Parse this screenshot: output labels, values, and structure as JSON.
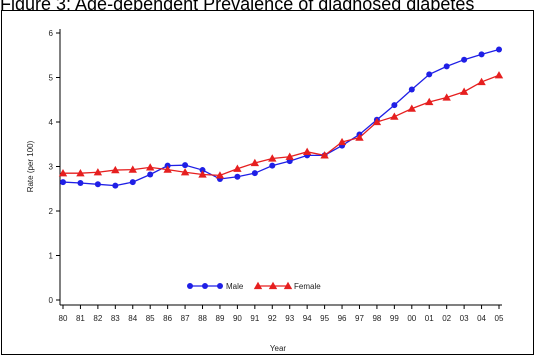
{
  "figure": {
    "title": "Figure 3: Age-dependent Prevalence of diagnosed diabetes"
  },
  "chart_data": {
    "type": "line",
    "xlabel": "Year",
    "ylabel": "Rate (per 100)",
    "categories": [
      "80",
      "81",
      "82",
      "83",
      "84",
      "85",
      "86",
      "87",
      "88",
      "89",
      "90",
      "91",
      "92",
      "93",
      "94",
      "95",
      "96",
      "97",
      "98",
      "99",
      "00",
      "01",
      "02",
      "03",
      "04",
      "05"
    ],
    "ylim": [
      0,
      6
    ],
    "yticks": [
      0,
      1,
      2,
      3,
      4,
      5,
      6
    ],
    "grid": false,
    "legend_position": "bottom-center",
    "series": [
      {
        "name": "Male",
        "color": "#1f1fe6",
        "marker": "circle",
        "values": [
          2.65,
          2.63,
          2.6,
          2.57,
          2.65,
          2.82,
          3.02,
          3.03,
          2.92,
          2.72,
          2.77,
          2.85,
          3.02,
          3.12,
          3.25,
          3.25,
          3.47,
          3.72,
          4.05,
          4.38,
          4.73,
          5.07,
          5.25,
          5.4,
          5.52,
          5.63
        ]
      },
      {
        "name": "Female",
        "color": "#e61f1f",
        "marker": "triangle",
        "values": [
          2.85,
          2.85,
          2.87,
          2.92,
          2.93,
          2.98,
          2.93,
          2.87,
          2.82,
          2.8,
          2.95,
          3.08,
          3.18,
          3.22,
          3.33,
          3.25,
          3.55,
          3.65,
          4.0,
          4.12,
          4.3,
          4.45,
          4.55,
          4.68,
          4.9,
          5.05
        ]
      }
    ]
  }
}
